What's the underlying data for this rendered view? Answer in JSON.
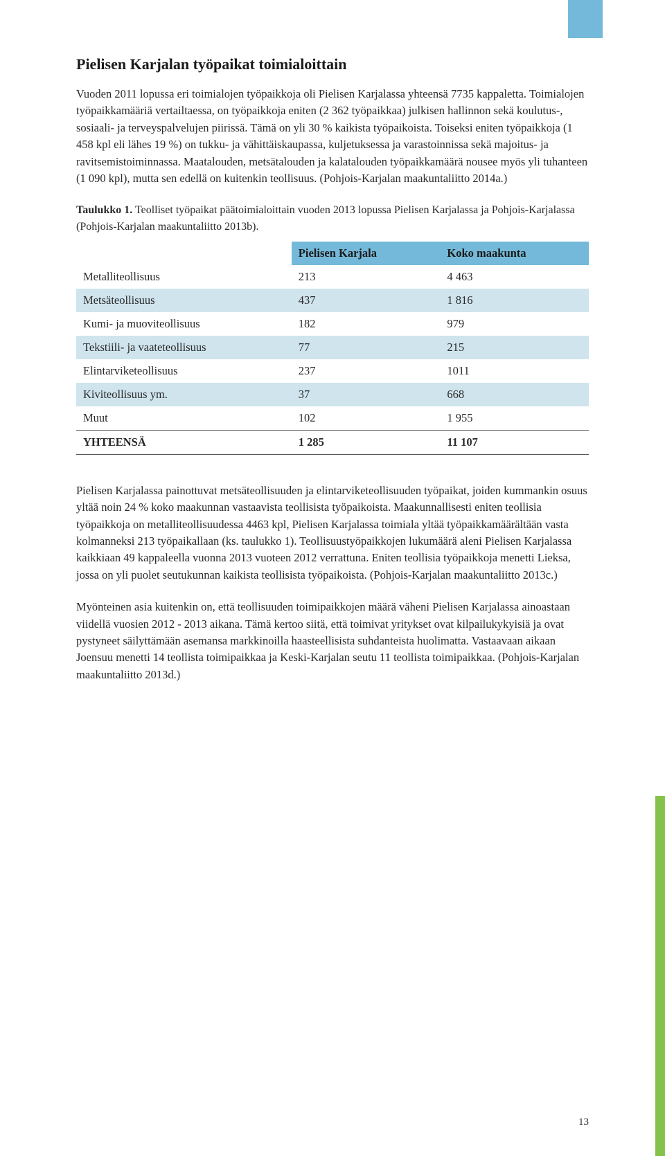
{
  "section_title": "Pielisen Karjalan työpaikat toimialoittain",
  "para1": "Vuoden 2011 lopussa eri toimialojen työpaikkoja oli Pielisen Karjalassa yhteensä 7735 kappaletta. Toimialojen työpaikkamääriä vertailtaessa, on työpaikkoja eniten (2 362 työpaikkaa) julkisen hallinnon sekä koulutus-, sosiaali- ja terveyspalvelujen piirissä. Tämä on yli 30 % kaikista työpaikoista. Toiseksi eniten työpaikkoja (1 458 kpl eli lähes 19 %) on tukku- ja vähittäiskaupassa, kuljetuksessa ja varastoinnissa sekä majoitus- ja ravitsemistoiminnassa. Maatalouden, metsätalouden ja kalatalouden työpaikkamäärä nousee myös yli tuhanteen (1 090 kpl), mutta sen edellä on kuitenkin teollisuus. (Pohjois-Karjalan maakuntaliitto 2014a.)",
  "table_caption_lead": "Taulukko 1.",
  "table_caption_rest": " Teolliset työpaikat päätoimialoittain vuoden 2013 lopussa Pielisen Karjalassa ja Pohjois-Karjalassa (Pohjois-Karjalan maakuntaliitto 2013b).",
  "table": {
    "columns": [
      "",
      "Pielisen Karjala",
      "Koko maakunta"
    ],
    "rows": [
      {
        "label": "Metalliteollisuus",
        "pk": "213",
        "km": "4 463",
        "alt": false
      },
      {
        "label": "Metsäteollisuus",
        "pk": "437",
        "km": "1 816",
        "alt": true
      },
      {
        "label": "Kumi- ja muoviteollisuus",
        "pk": "182",
        "km": "979",
        "alt": false
      },
      {
        "label": "Tekstiili- ja vaateteollisuus",
        "pk": "77",
        "km": "215",
        "alt": true
      },
      {
        "label": "Elintarviketeollisuus",
        "pk": "237",
        "km": "1011",
        "alt": false
      },
      {
        "label": "Kiviteollisuus ym.",
        "pk": "37",
        "km": "668",
        "alt": true
      },
      {
        "label": "Muut",
        "pk": "102",
        "km": "1 955",
        "alt": false
      }
    ],
    "total": {
      "label": "YHTEENSÄ",
      "pk": "1 285",
      "km": "11 107"
    }
  },
  "para2": "Pielisen Karjalassa painottuvat metsäteollisuuden ja elintarviketeollisuuden työpaikat, joiden kummankin osuus yltää noin 24 % koko maakunnan vastaavista teollisista työpaikoista. Maakunnallisesti eniten teollisia työpaikkoja on metalliteollisuudessa 4463 kpl, Pielisen Karjalassa toimiala yltää työpaikkamäärältään vasta kolmanneksi 213 työpaikallaan (ks. taulukko 1). Teollisuustyöpaikkojen lukumäärä aleni Pielisen Karjalassa kaikkiaan 49 kappaleella vuonna 2013 vuoteen 2012 verrattuna. Eniten teollisia työpaikkoja menetti Lieksa, jossa on yli puolet seutukunnan kaikista teollisista työpaikoista. (Pohjois-Karjalan maakuntaliitto 2013c.)",
  "para3": "Myönteinen asia kuitenkin on, että teollisuuden toimipaikkojen määrä väheni Pielisen Karjalassa ainoastaan viidellä vuosien 2012 - 2013 aikana. Tämä kertoo siitä, että toimivat yritykset ovat kilpailukykyisiä ja ovat pystyneet säilyttämään asemansa markkinoilla haasteellisista suhdanteista huolimatta. Vastaavaan aikaan Joensuu menetti 14 teollista toimipaikkaa ja Keski-Karjalan seutu 11 teollista toimipaikkaa. (Pohjois-Karjalan maakuntaliitto 2013d.)",
  "page_number": "13",
  "accent_color_top": "#74b9d9",
  "accent_color_side": "#85c24b"
}
